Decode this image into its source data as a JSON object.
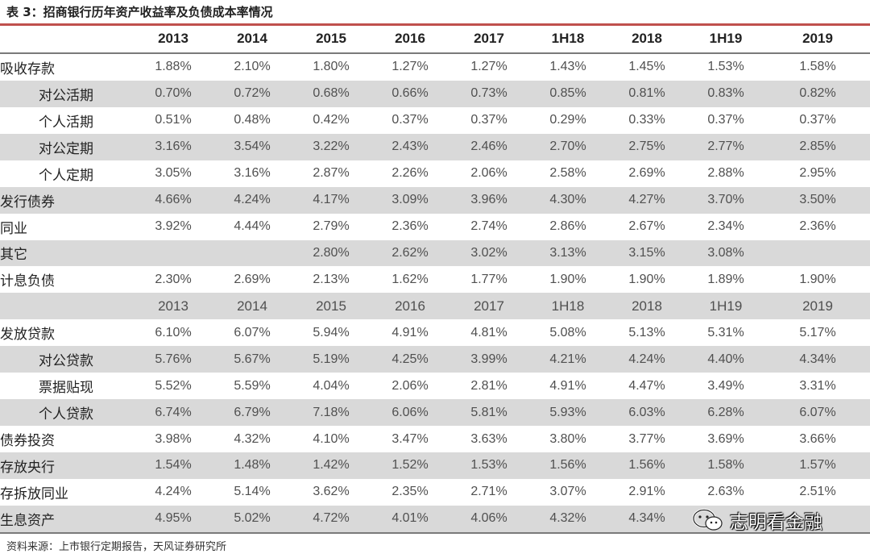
{
  "title": "表 3：招商银行历年资产收益率及负债成本率情况",
  "columns": [
    "2013",
    "2014",
    "2015",
    "2016",
    "2017",
    "1H18",
    "2018",
    "1H19",
    "2019"
  ],
  "rows": [
    {
      "label": "吸收存款",
      "sub": false,
      "shade": false,
      "values": [
        "1.88%",
        "2.10%",
        "1.80%",
        "1.27%",
        "1.27%",
        "1.43%",
        "1.45%",
        "1.53%",
        "1.58%"
      ]
    },
    {
      "label": "对公活期",
      "sub": true,
      "shade": true,
      "values": [
        "0.70%",
        "0.72%",
        "0.68%",
        "0.66%",
        "0.73%",
        "0.85%",
        "0.81%",
        "0.83%",
        "0.82%"
      ]
    },
    {
      "label": "个人活期",
      "sub": true,
      "shade": false,
      "values": [
        "0.51%",
        "0.48%",
        "0.42%",
        "0.37%",
        "0.37%",
        "0.29%",
        "0.33%",
        "0.37%",
        "0.37%"
      ]
    },
    {
      "label": "对公定期",
      "sub": true,
      "shade": true,
      "values": [
        "3.16%",
        "3.54%",
        "3.22%",
        "2.43%",
        "2.46%",
        "2.70%",
        "2.75%",
        "2.77%",
        "2.85%"
      ]
    },
    {
      "label": "个人定期",
      "sub": true,
      "shade": false,
      "values": [
        "3.05%",
        "3.16%",
        "2.87%",
        "2.26%",
        "2.06%",
        "2.58%",
        "2.69%",
        "2.88%",
        "2.95%"
      ]
    },
    {
      "label": "发行债券",
      "sub": false,
      "shade": true,
      "values": [
        "4.66%",
        "4.24%",
        "4.17%",
        "3.09%",
        "3.96%",
        "4.30%",
        "4.27%",
        "3.70%",
        "3.50%"
      ]
    },
    {
      "label": "同业",
      "sub": false,
      "shade": false,
      "values": [
        "3.92%",
        "4.44%",
        "2.79%",
        "2.36%",
        "2.74%",
        "2.86%",
        "2.67%",
        "2.34%",
        "2.36%"
      ]
    },
    {
      "label": "其它",
      "sub": false,
      "shade": true,
      "values": [
        "",
        "",
        "2.80%",
        "2.62%",
        "3.02%",
        "3.13%",
        "3.15%",
        "3.08%",
        ""
      ]
    },
    {
      "label": "计息负债",
      "sub": false,
      "shade": false,
      "values": [
        "2.30%",
        "2.69%",
        "2.13%",
        "1.62%",
        "1.77%",
        "1.90%",
        "1.90%",
        "1.89%",
        "1.90%"
      ]
    },
    {
      "label": "",
      "sub": false,
      "shade": true,
      "year": true,
      "values": [
        "2013",
        "2014",
        "2015",
        "2016",
        "2017",
        "1H18",
        "2018",
        "1H19",
        "2019"
      ]
    },
    {
      "label": "发放贷款",
      "sub": false,
      "shade": false,
      "values": [
        "6.10%",
        "6.07%",
        "5.94%",
        "4.91%",
        "4.81%",
        "5.08%",
        "5.13%",
        "5.31%",
        "5.17%"
      ]
    },
    {
      "label": "对公贷款",
      "sub": true,
      "shade": true,
      "values": [
        "5.76%",
        "5.67%",
        "5.19%",
        "4.25%",
        "3.99%",
        "4.21%",
        "4.24%",
        "4.40%",
        "4.34%"
      ]
    },
    {
      "label": "票据贴现",
      "sub": true,
      "shade": false,
      "values": [
        "5.52%",
        "5.59%",
        "4.04%",
        "2.06%",
        "2.81%",
        "4.91%",
        "4.47%",
        "3.49%",
        "3.31%"
      ]
    },
    {
      "label": "个人贷款",
      "sub": true,
      "shade": true,
      "values": [
        "6.74%",
        "6.79%",
        "7.18%",
        "6.06%",
        "5.81%",
        "5.93%",
        "6.03%",
        "6.28%",
        "6.07%"
      ]
    },
    {
      "label": "债券投资",
      "sub": false,
      "shade": false,
      "values": [
        "3.98%",
        "4.32%",
        "4.10%",
        "3.47%",
        "3.63%",
        "3.80%",
        "3.77%",
        "3.69%",
        "3.66%"
      ]
    },
    {
      "label": "存放央行",
      "sub": false,
      "shade": true,
      "values": [
        "1.54%",
        "1.48%",
        "1.42%",
        "1.52%",
        "1.53%",
        "1.56%",
        "1.56%",
        "1.58%",
        "1.57%"
      ]
    },
    {
      "label": "存拆放同业",
      "sub": false,
      "shade": false,
      "values": [
        "4.24%",
        "5.14%",
        "3.62%",
        "2.35%",
        "2.71%",
        "3.07%",
        "2.91%",
        "2.63%",
        "2.51%"
      ]
    },
    {
      "label": "生息资产",
      "sub": false,
      "shade": true,
      "values": [
        "4.95%",
        "5.02%",
        "4.72%",
        "4.01%",
        "4.06%",
        "4.32%",
        "4.34%",
        "",
        ""
      ]
    }
  ],
  "source": "资料来源：上市银行定期报告，天风证券研究所",
  "watermark": "志明看金融",
  "colors": {
    "header_rule": "#c0504d",
    "shade": "#d9d9d9",
    "rule": "#7a7a7a"
  },
  "icons": {
    "watermark_icon": "wechat-icon"
  }
}
